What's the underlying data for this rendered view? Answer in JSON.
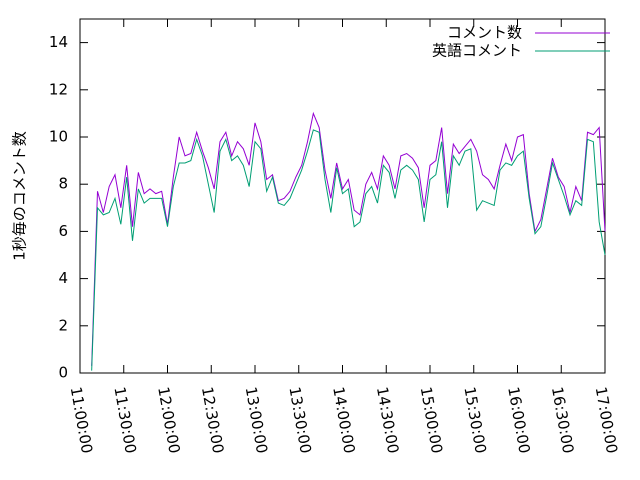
{
  "chart_data": {
    "type": "line",
    "ylabel": "1秒毎のコメント数",
    "x": [
      "11:00:00",
      "11:04:00",
      "11:08:00",
      "11:12:00",
      "11:16:00",
      "11:20:00",
      "11:24:00",
      "11:28:00",
      "11:32:00",
      "11:36:00",
      "11:40:00",
      "11:44:00",
      "11:48:00",
      "11:52:00",
      "11:56:00",
      "12:00:00",
      "12:04:00",
      "12:08:00",
      "12:12:00",
      "12:16:00",
      "12:20:00",
      "12:24:00",
      "12:28:00",
      "12:32:00",
      "12:36:00",
      "12:40:00",
      "12:44:00",
      "12:48:00",
      "12:52:00",
      "12:56:00",
      "13:00:00",
      "13:04:00",
      "13:08:00",
      "13:12:00",
      "13:16:00",
      "13:20:00",
      "13:24:00",
      "13:28:00",
      "13:32:00",
      "13:36:00",
      "13:40:00",
      "13:44:00",
      "13:48:00",
      "13:52:00",
      "13:56:00",
      "14:00:00",
      "14:04:00",
      "14:08:00",
      "14:12:00",
      "14:16:00",
      "14:20:00",
      "14:24:00",
      "14:28:00",
      "14:32:00",
      "14:36:00",
      "14:40:00",
      "14:44:00",
      "14:48:00",
      "14:52:00",
      "14:56:00",
      "15:00:00",
      "15:04:00",
      "15:08:00",
      "15:12:00",
      "15:16:00",
      "15:20:00",
      "15:24:00",
      "15:28:00",
      "15:32:00",
      "15:36:00",
      "15:40:00",
      "15:44:00",
      "15:48:00",
      "15:52:00",
      "15:56:00",
      "16:00:00",
      "16:04:00",
      "16:08:00",
      "16:12:00",
      "16:16:00",
      "16:20:00",
      "16:24:00",
      "16:28:00",
      "16:32:00",
      "16:36:00",
      "16:40:00",
      "16:44:00",
      "16:48:00",
      "16:52:00",
      "16:56:00",
      "17:00:00"
    ],
    "series": [
      {
        "name": "コメント数",
        "color": "#9400d3",
        "values": [
          null,
          null,
          0.3,
          7.7,
          6.8,
          7.9,
          8.4,
          7.0,
          8.8,
          6.2,
          8.5,
          7.6,
          7.8,
          7.6,
          7.7,
          6.3,
          8.3,
          10.0,
          9.2,
          9.3,
          10.2,
          9.4,
          8.7,
          7.8,
          9.8,
          10.2,
          9.2,
          9.8,
          9.5,
          8.8,
          10.6,
          9.8,
          8.2,
          8.4,
          7.3,
          7.4,
          7.7,
          8.3,
          8.8,
          9.8,
          11.0,
          10.4,
          8.6,
          7.4,
          8.9,
          7.8,
          8.2,
          6.9,
          6.7,
          8.0,
          8.5,
          7.8,
          9.2,
          8.8,
          7.8,
          9.2,
          9.3,
          9.1,
          8.7,
          7.0,
          8.8,
          9.0,
          10.4,
          7.6,
          9.7,
          9.3,
          9.6,
          9.9,
          9.4,
          8.4,
          8.2,
          7.8,
          8.8,
          9.7,
          9.0,
          10.0,
          10.1,
          7.6,
          6.0,
          6.5,
          7.8,
          9.1,
          8.3,
          7.9,
          6.8,
          7.9,
          7.3,
          10.2,
          10.1,
          10.4,
          6.0
        ]
      },
      {
        "name": "英語コメント",
        "color": "#009e73",
        "values": [
          null,
          null,
          0.1,
          7.0,
          6.7,
          6.8,
          7.4,
          6.3,
          8.3,
          5.6,
          7.8,
          7.2,
          7.4,
          7.4,
          7.4,
          6.2,
          7.9,
          8.9,
          8.9,
          9.0,
          9.9,
          9.2,
          8.0,
          6.8,
          9.4,
          9.9,
          9.0,
          9.2,
          8.8,
          7.9,
          9.8,
          9.5,
          7.7,
          8.3,
          7.2,
          7.1,
          7.4,
          8.0,
          8.6,
          9.4,
          10.3,
          10.2,
          8.2,
          6.8,
          8.7,
          7.6,
          7.8,
          6.2,
          6.4,
          7.6,
          7.9,
          7.2,
          8.8,
          8.5,
          7.4,
          8.6,
          8.8,
          8.6,
          8.2,
          6.4,
          8.2,
          8.4,
          9.8,
          7.0,
          9.2,
          8.8,
          9.4,
          9.5,
          6.9,
          7.3,
          7.2,
          7.1,
          8.6,
          8.9,
          8.8,
          9.2,
          9.4,
          7.4,
          5.9,
          6.2,
          7.5,
          8.9,
          8.2,
          7.5,
          6.7,
          7.3,
          7.1,
          9.9,
          9.8,
          6.4,
          5.0
        ]
      }
    ],
    "xlim": [
      "11:00:00",
      "17:00:00"
    ],
    "xticks": [
      "11:00:00",
      "11:30:00",
      "12:00:00",
      "12:30:00",
      "13:00:00",
      "13:30:00",
      "14:00:00",
      "14:30:00",
      "15:00:00",
      "15:30:00",
      "16:00:00",
      "16:30:00",
      "17:00:00"
    ],
    "ylim": [
      0,
      15
    ],
    "yticks": [
      0,
      2,
      4,
      6,
      8,
      10,
      12,
      14
    ],
    "legend": "top-right"
  }
}
